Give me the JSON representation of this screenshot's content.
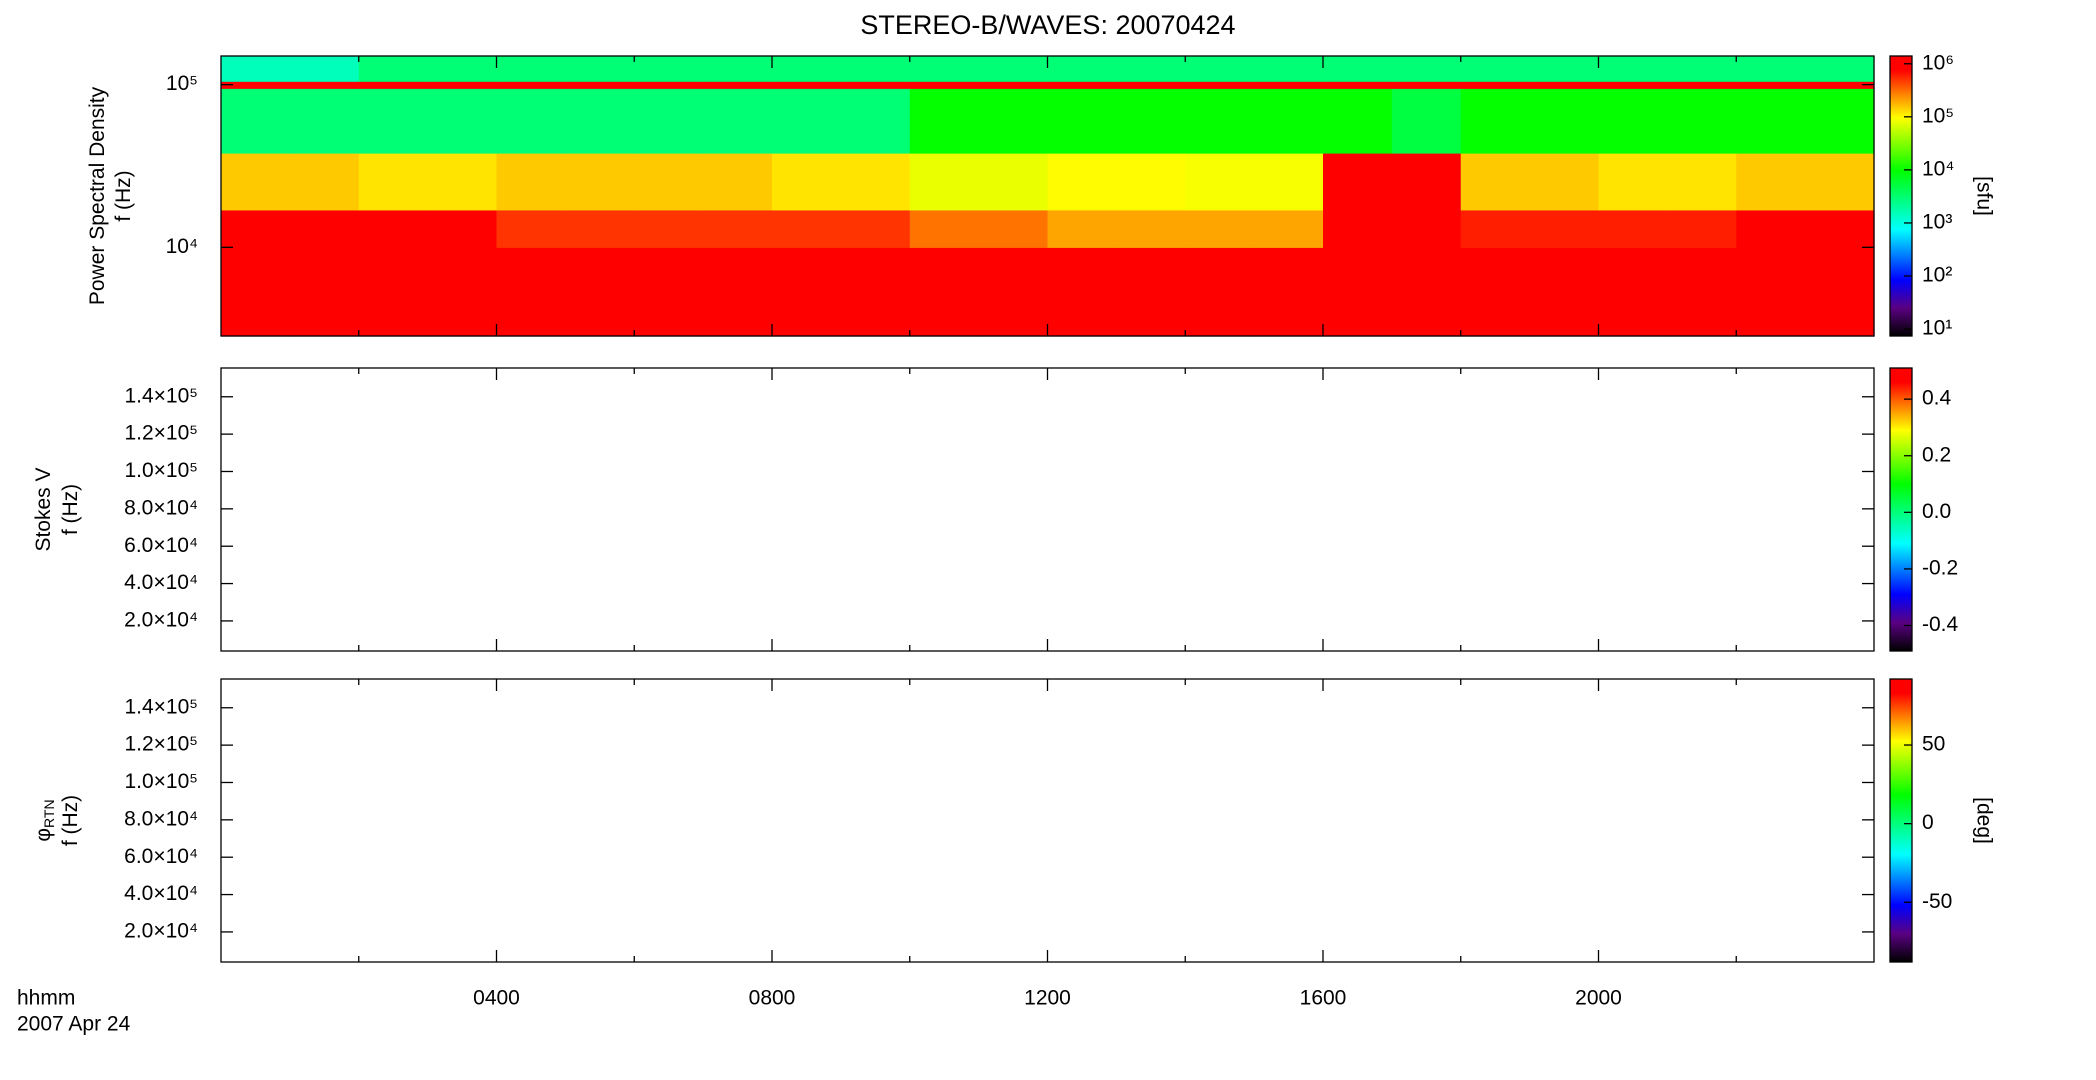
{
  "chart_data": {
    "type": "spectrogram",
    "title": "STEREO-B/WAVES: 20070424",
    "xlabel": "hhmm",
    "date_label": "2007 Apr 24",
    "xlim": [
      0,
      24
    ],
    "xticks": [
      {
        "value": 4,
        "label": "0400"
      },
      {
        "value": 8,
        "label": "0800"
      },
      {
        "value": 12,
        "label": "1200"
      },
      {
        "value": 16,
        "label": "1600"
      },
      {
        "value": 20,
        "label": "2000"
      }
    ],
    "xminor_ticks": [
      2,
      6,
      10,
      14,
      18,
      22
    ],
    "colormap": [
      {
        "at": 0,
        "color": "#000000"
      },
      {
        "at": 0.1,
        "color": "#5a0082"
      },
      {
        "at": 0.2,
        "color": "#0000ff"
      },
      {
        "at": 0.38,
        "color": "#00ffff"
      },
      {
        "at": 0.59,
        "color": "#00ff00"
      },
      {
        "at": 0.78,
        "color": "#ffff00"
      },
      {
        "at": 0.95,
        "color": "#ff0000"
      },
      {
        "at": 1,
        "color": "#ff0000"
      }
    ],
    "panels": [
      {
        "type": "heatmap",
        "ylabel": [
          "Power Spectral Density",
          "f (Hz)"
        ],
        "ylog": true,
        "ylim": [
          2850,
          150000
        ],
        "yticks": [
          {
            "value": 10000,
            "label": "10⁴"
          },
          {
            "value": 100000,
            "label": "10⁵"
          }
        ],
        "xbins": [
          0,
          1,
          2,
          3,
          4,
          5,
          6,
          7,
          8,
          9,
          10,
          11,
          12,
          13,
          14,
          15,
          16,
          17,
          18,
          19,
          20,
          21,
          22,
          23,
          24
        ],
        "ybins": [
          2850,
          10000,
          17000,
          38000,
          95000,
          105000,
          150000
        ],
        "z": [
          [
            1000000,
            1000000,
            1000000,
            1000000,
            1000000,
            1000000,
            1000000,
            1000000,
            1000000,
            1000000,
            1000000,
            1000000,
            1000000,
            1000000,
            1000000,
            1000000,
            1000000,
            1000000,
            1000000,
            1000000,
            1000000,
            1000000,
            1000000,
            1000000
          ],
          [
            1000000,
            1000000,
            1000000,
            1000000,
            500000,
            500000,
            500000,
            500000,
            500000,
            500000,
            300000,
            300000,
            200000,
            200000,
            200000,
            200000,
            1000000,
            1000000,
            600000,
            600000,
            600000,
            600000,
            1000000,
            1000000
          ],
          [
            150000,
            150000,
            120000,
            120000,
            150000,
            150000,
            150000,
            150000,
            120000,
            120000,
            80000,
            80000,
            100000,
            100000,
            90000,
            90000,
            1000000,
            1000000,
            150000,
            150000,
            120000,
            120000,
            150000,
            150000
          ],
          [
            3000,
            3000,
            3000,
            3000,
            3000,
            3000,
            3000,
            3000,
            3000,
            3000,
            10000,
            10000,
            10000,
            10000,
            10000,
            10000,
            10000,
            5000,
            10000,
            10000,
            10000,
            10000,
            10000,
            10000
          ],
          [
            1000000,
            1000000,
            1000000,
            1000000,
            1000000,
            1000000,
            1000000,
            1000000,
            1000000,
            1000000,
            1000000,
            1000000,
            1000000,
            1000000,
            1000000,
            1000000,
            1000000,
            1000000,
            1000000,
            1000000,
            1000000,
            1000000,
            1000000,
            1000000
          ],
          [
            1500,
            1500,
            3000,
            3000,
            3000,
            3000,
            3000,
            3000,
            3000,
            3000,
            3000,
            3000,
            3000,
            3000,
            3000,
            3000,
            3000,
            3000,
            3000,
            3000,
            3000,
            3000,
            3000,
            3000
          ]
        ],
        "clog": true,
        "clim": [
          7.4,
          1400000
        ],
        "cticks": [
          {
            "value": 10,
            "label": "10¹"
          },
          {
            "value": 100,
            "label": "10²"
          },
          {
            "value": 1000,
            "label": "10³"
          },
          {
            "value": 10000,
            "label": "10⁴"
          },
          {
            "value": 100000,
            "label": "10⁵"
          },
          {
            "value": 1000000,
            "label": "10⁶"
          }
        ],
        "clabel": "[sfu]"
      },
      {
        "type": "heatmap",
        "ylabel": [
          "Stokes V",
          "f (Hz)"
        ],
        "ylim": [
          3900,
          155400
        ],
        "yticks": [
          {
            "value": 20000,
            "label": "2.0×10⁴"
          },
          {
            "value": 40000,
            "label": "4.0×10⁴"
          },
          {
            "value": 60000,
            "label": "6.0×10⁴"
          },
          {
            "value": 80000,
            "label": "8.0×10⁴"
          },
          {
            "value": 100000,
            "label": "1.0×10⁵"
          },
          {
            "value": 120000,
            "label": "1.2×10⁵"
          },
          {
            "value": 140000,
            "label": "1.4×10⁵"
          }
        ],
        "clim": [
          -0.49,
          0.51
        ],
        "cticks": [
          -0.4,
          -0.2,
          {
            "value": 0,
            "label": "0.0"
          },
          0.2,
          0.4
        ]
      },
      {
        "type": "heatmap",
        "ylabel": [
          "φ",
          "f (Hz)"
        ],
        "ylabel_sub": "RTN",
        "ylim": [
          3900,
          155400
        ],
        "yticks": [
          {
            "value": 20000,
            "label": "2.0×10⁴"
          },
          {
            "value": 40000,
            "label": "4.0×10⁴"
          },
          {
            "value": 60000,
            "label": "6.0×10⁴"
          },
          {
            "value": 80000,
            "label": "8.0×10⁴"
          },
          {
            "value": 100000,
            "label": "1.0×10⁵"
          },
          {
            "value": 120000,
            "label": "1.2×10⁵"
          },
          {
            "value": 140000,
            "label": "1.4×10⁵"
          }
        ],
        "clim": [
          -88,
          92
        ],
        "cticks": [
          -50,
          0,
          50
        ],
        "clabel": "[deg]"
      }
    ]
  }
}
